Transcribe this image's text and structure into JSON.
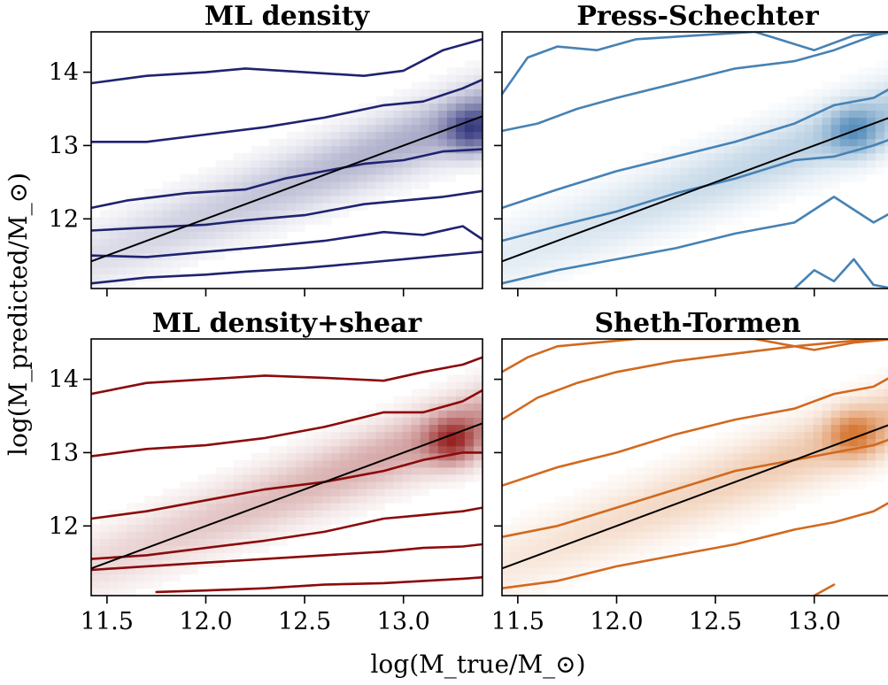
{
  "figure": {
    "xlabel": "log(M_true/M_⊙)",
    "ylabel": "log(M_predicted/M_⊙)"
  },
  "chart_data": [
    {
      "type": "heatmap",
      "title": "ML density",
      "color": "#1f2370",
      "xlim": [
        11.42,
        13.4
      ],
      "ylim": [
        11.05,
        14.55
      ],
      "x_ticks": [
        "11.5",
        "12.0",
        "12.5",
        "13.0"
      ],
      "y_ticks": [
        "12",
        "13",
        "14"
      ],
      "x_tick_labels_shown": false,
      "y_tick_labels_shown": true,
      "one_to_one_line": [
        [
          11.42,
          11.42
        ],
        [
          13.4,
          13.4
        ]
      ],
      "density_peak": [
        13.35,
        13.2
      ],
      "contours": [
        {
          "x": [
            11.42,
            11.7,
            12.0,
            12.2,
            12.5,
            12.8,
            13.0,
            13.2,
            13.4
          ],
          "y": [
            11.12,
            11.2,
            11.24,
            11.28,
            11.33,
            11.4,
            11.45,
            11.5,
            11.55
          ]
        },
        {
          "x": [
            11.42,
            11.7,
            12.0,
            12.3,
            12.6,
            12.9,
            13.1,
            13.3,
            13.4
          ],
          "y": [
            11.5,
            11.48,
            11.55,
            11.62,
            11.7,
            11.82,
            11.78,
            11.9,
            11.72
          ]
        },
        {
          "x": [
            11.42,
            11.7,
            12.0,
            12.2,
            12.5,
            12.8,
            13.0,
            13.2,
            13.4
          ],
          "y": [
            11.84,
            11.88,
            11.92,
            11.98,
            12.05,
            12.2,
            12.25,
            12.3,
            12.38
          ]
        },
        {
          "x": [
            11.42,
            11.6,
            11.9,
            12.2,
            12.4,
            12.6,
            12.8,
            13.0,
            13.2,
            13.4
          ],
          "y": [
            12.15,
            12.25,
            12.35,
            12.4,
            12.55,
            12.65,
            12.75,
            12.8,
            12.92,
            12.95
          ]
        },
        {
          "x": [
            11.42,
            11.7,
            12.0,
            12.3,
            12.6,
            12.9,
            13.1,
            13.3,
            13.4
          ],
          "y": [
            13.05,
            13.05,
            13.15,
            13.25,
            13.38,
            13.55,
            13.6,
            13.78,
            13.9
          ]
        },
        {
          "x": [
            11.42,
            11.7,
            12.0,
            12.2,
            12.5,
            12.8,
            13.0,
            13.2,
            13.4
          ],
          "y": [
            13.85,
            13.95,
            14.0,
            14.05,
            14.0,
            13.95,
            14.02,
            14.3,
            14.45
          ]
        }
      ]
    },
    {
      "type": "heatmap",
      "title": "Press-Schechter",
      "color": "#4682b4",
      "xlim": [
        11.42,
        13.4
      ],
      "ylim": [
        11.05,
        14.55
      ],
      "x_ticks": [
        "11.5",
        "12.0",
        "12.5",
        "13.0"
      ],
      "y_ticks": [
        "12",
        "13",
        "14"
      ],
      "x_tick_labels_shown": false,
      "y_tick_labels_shown": false,
      "one_to_one_line": [
        [
          11.42,
          11.42
        ],
        [
          13.4,
          13.4
        ]
      ],
      "density_peak": [
        13.2,
        13.2
      ],
      "contours": [
        {
          "x": [
            12.9,
            13.0,
            13.1,
            13.2,
            13.3,
            13.4
          ],
          "y": [
            11.05,
            11.3,
            11.15,
            11.45,
            11.1,
            11.05
          ]
        },
        {
          "x": [
            11.42,
            11.7,
            12.0,
            12.3,
            12.6,
            12.9,
            13.1,
            13.3,
            13.4
          ],
          "y": [
            11.12,
            11.3,
            11.45,
            11.6,
            11.8,
            11.95,
            12.3,
            11.95,
            12.1
          ]
        },
        {
          "x": [
            11.42,
            11.7,
            12.0,
            12.3,
            12.6,
            12.9,
            13.1,
            13.3,
            13.4
          ],
          "y": [
            11.7,
            11.9,
            12.1,
            12.35,
            12.55,
            12.8,
            12.85,
            13.0,
            13.1
          ]
        },
        {
          "x": [
            11.42,
            11.7,
            12.0,
            12.3,
            12.6,
            12.9,
            13.1,
            13.3,
            13.4
          ],
          "y": [
            12.15,
            12.4,
            12.65,
            12.85,
            13.05,
            13.3,
            13.55,
            13.65,
            13.8
          ]
        },
        {
          "x": [
            11.42,
            11.6,
            11.8,
            12.0,
            12.3,
            12.6,
            12.9,
            13.1,
            13.3,
            13.4
          ],
          "y": [
            13.2,
            13.3,
            13.5,
            13.65,
            13.85,
            14.05,
            14.15,
            14.3,
            14.5,
            14.55
          ]
        },
        {
          "x": [
            11.42,
            11.55,
            11.7,
            11.9,
            12.1,
            12.4,
            12.7,
            13.0,
            13.2,
            13.4
          ],
          "y": [
            13.7,
            14.2,
            14.35,
            14.3,
            14.45,
            14.5,
            14.55,
            14.3,
            14.5,
            14.55
          ]
        }
      ]
    },
    {
      "type": "heatmap",
      "title": "ML density+shear",
      "color": "#8b0a0a",
      "xlim": [
        11.42,
        13.4
      ],
      "ylim": [
        11.05,
        14.55
      ],
      "x_ticks": [
        "11.5",
        "12.0",
        "12.5",
        "13.0"
      ],
      "y_ticks": [
        "12",
        "13",
        "14"
      ],
      "x_tick_labels_shown": true,
      "y_tick_labels_shown": true,
      "one_to_one_line": [
        [
          11.42,
          11.42
        ],
        [
          13.4,
          13.4
        ]
      ],
      "density_peak": [
        13.25,
        13.15
      ],
      "contours": [
        {
          "x": [
            11.75,
            12.0,
            12.3,
            12.6,
            12.9,
            13.1,
            13.3,
            13.4
          ],
          "y": [
            11.1,
            11.12,
            11.15,
            11.2,
            11.22,
            11.25,
            11.28,
            11.3
          ]
        },
        {
          "x": [
            11.42,
            11.7,
            12.0,
            12.3,
            12.6,
            12.9,
            13.1,
            13.3,
            13.4
          ],
          "y": [
            11.4,
            11.45,
            11.5,
            11.55,
            11.6,
            11.65,
            11.7,
            11.72,
            11.75
          ]
        },
        {
          "x": [
            11.42,
            11.7,
            12.0,
            12.3,
            12.6,
            12.9,
            13.1,
            13.3,
            13.4
          ],
          "y": [
            11.55,
            11.6,
            11.7,
            11.8,
            11.92,
            12.1,
            12.15,
            12.2,
            12.25
          ]
        },
        {
          "x": [
            11.42,
            11.7,
            12.0,
            12.3,
            12.6,
            12.9,
            13.1,
            13.3,
            13.4
          ],
          "y": [
            12.1,
            12.2,
            12.35,
            12.5,
            12.6,
            12.75,
            12.9,
            13.0,
            13.0
          ]
        },
        {
          "x": [
            11.42,
            11.7,
            12.0,
            12.3,
            12.6,
            12.9,
            13.1,
            13.3,
            13.4
          ],
          "y": [
            12.95,
            13.05,
            13.1,
            13.2,
            13.35,
            13.55,
            13.55,
            13.7,
            13.85
          ]
        },
        {
          "x": [
            11.42,
            11.7,
            12.0,
            12.3,
            12.6,
            12.9,
            13.1,
            13.3,
            13.4
          ],
          "y": [
            13.8,
            13.95,
            14.0,
            14.05,
            14.02,
            13.98,
            14.1,
            14.2,
            14.3
          ]
        }
      ]
    },
    {
      "type": "heatmap",
      "title": "Sheth-Tormen",
      "color": "#d2691e",
      "xlim": [
        11.42,
        13.4
      ],
      "ylim": [
        11.05,
        14.55
      ],
      "x_ticks": [
        "11.5",
        "12.0",
        "12.5",
        "13.0"
      ],
      "y_ticks": [
        "12",
        "13",
        "14"
      ],
      "x_tick_labels_shown": true,
      "y_tick_labels_shown": false,
      "one_to_one_line": [
        [
          11.42,
          11.42
        ],
        [
          13.4,
          13.4
        ]
      ],
      "density_peak": [
        13.2,
        13.25
      ],
      "contours": [
        {
          "x": [
            13.0,
            13.1
          ],
          "y": [
            11.05,
            11.2
          ]
        },
        {
          "x": [
            11.42,
            11.7,
            12.0,
            12.3,
            12.6,
            12.9,
            13.1,
            13.3,
            13.4
          ],
          "y": [
            11.15,
            11.25,
            11.45,
            11.6,
            11.75,
            11.95,
            12.05,
            12.2,
            12.35
          ]
        },
        {
          "x": [
            11.42,
            11.7,
            12.0,
            12.3,
            12.6,
            12.9,
            13.1,
            13.3,
            13.4
          ],
          "y": [
            11.85,
            12.0,
            12.25,
            12.5,
            12.75,
            12.9,
            13.0,
            13.1,
            13.2
          ]
        },
        {
          "x": [
            11.42,
            11.7,
            12.0,
            12.3,
            12.6,
            12.9,
            13.1,
            13.3,
            13.4
          ],
          "y": [
            12.55,
            12.8,
            13.0,
            13.25,
            13.45,
            13.6,
            13.8,
            13.9,
            14.05
          ]
        },
        {
          "x": [
            11.42,
            11.6,
            11.8,
            12.0,
            12.3,
            12.6,
            12.9,
            13.1,
            13.3,
            13.4
          ],
          "y": [
            13.45,
            13.75,
            13.95,
            14.1,
            14.25,
            14.35,
            14.45,
            14.5,
            14.55,
            14.55
          ]
        },
        {
          "x": [
            11.42,
            11.55,
            11.7,
            11.9,
            12.1,
            12.4,
            12.7,
            13.0,
            13.2,
            13.4
          ],
          "y": [
            14.1,
            14.3,
            14.45,
            14.5,
            14.55,
            14.55,
            14.55,
            14.4,
            14.5,
            14.55
          ]
        }
      ]
    }
  ]
}
